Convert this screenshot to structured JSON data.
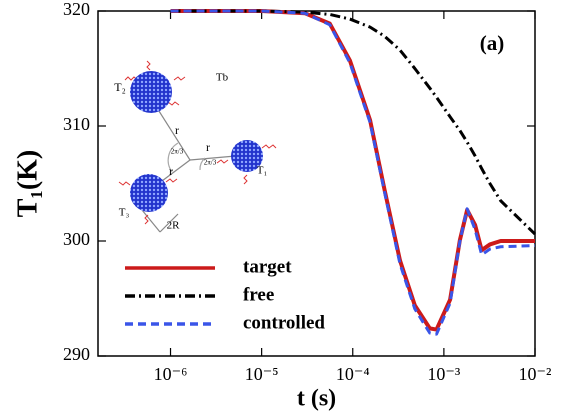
{
  "chart_data": {
    "type": "line",
    "xlabel": "t (s)",
    "ylabel": "T₁(K)",
    "annotation": "(a)",
    "xscale": "log",
    "xlim": [
      1.6e-07,
      0.01
    ],
    "ylim": [
      290,
      320
    ],
    "xticks": [
      {
        "value": 1e-06,
        "label": "10⁻⁶"
      },
      {
        "value": 1e-05,
        "label": "10⁻⁵"
      },
      {
        "value": 0.0001,
        "label": "10⁻⁴"
      },
      {
        "value": 0.001,
        "label": "10⁻³"
      },
      {
        "value": 0.01,
        "label": "10⁻²"
      }
    ],
    "yticks": [
      290,
      300,
      310,
      320
    ],
    "legend": "lower left",
    "x": [
      1e-06,
      1e-05,
      3e-05,
      5.6e-05,
      9.3e-05,
      0.000155,
      0.000224,
      0.00033,
      0.00048,
      0.0007,
      0.00083,
      0.00117,
      0.0015,
      0.0018,
      0.0022,
      0.0026,
      0.0032,
      0.0042,
      0.01
    ],
    "series": [
      {
        "name": "target",
        "color": "#cc1a1a",
        "style": "solid",
        "values": [
          320,
          320,
          319.8,
          318.9,
          315.7,
          310.5,
          304.4,
          298.3,
          294.4,
          292.4,
          292.3,
          294.9,
          300.1,
          302.7,
          301.4,
          299.2,
          299.7,
          300,
          300
        ]
      },
      {
        "name": "free",
        "color": "#000000",
        "style": "dashdot",
        "values": [
          320,
          320,
          319.9,
          319.7,
          319.3,
          318.6,
          317.8,
          316.6,
          315,
          313.3,
          312.5,
          310.8,
          309.6,
          308.6,
          307.4,
          306.3,
          305,
          303.5,
          300.6
        ]
      },
      {
        "name": "controlled",
        "color": "#3a55e8",
        "style": "dashed",
        "values": [
          320,
          320,
          319.8,
          318.8,
          315.5,
          310.3,
          304.2,
          298,
          294.1,
          292,
          291.9,
          294.6,
          300,
          302.8,
          301,
          298.8,
          299.3,
          299.5,
          299.6
        ]
      }
    ],
    "inset_labels": [
      "T₂",
      "Tb",
      "r",
      "r",
      "r",
      "2π/3",
      "2π/3",
      "T₁",
      "T₃",
      "2R"
    ]
  }
}
